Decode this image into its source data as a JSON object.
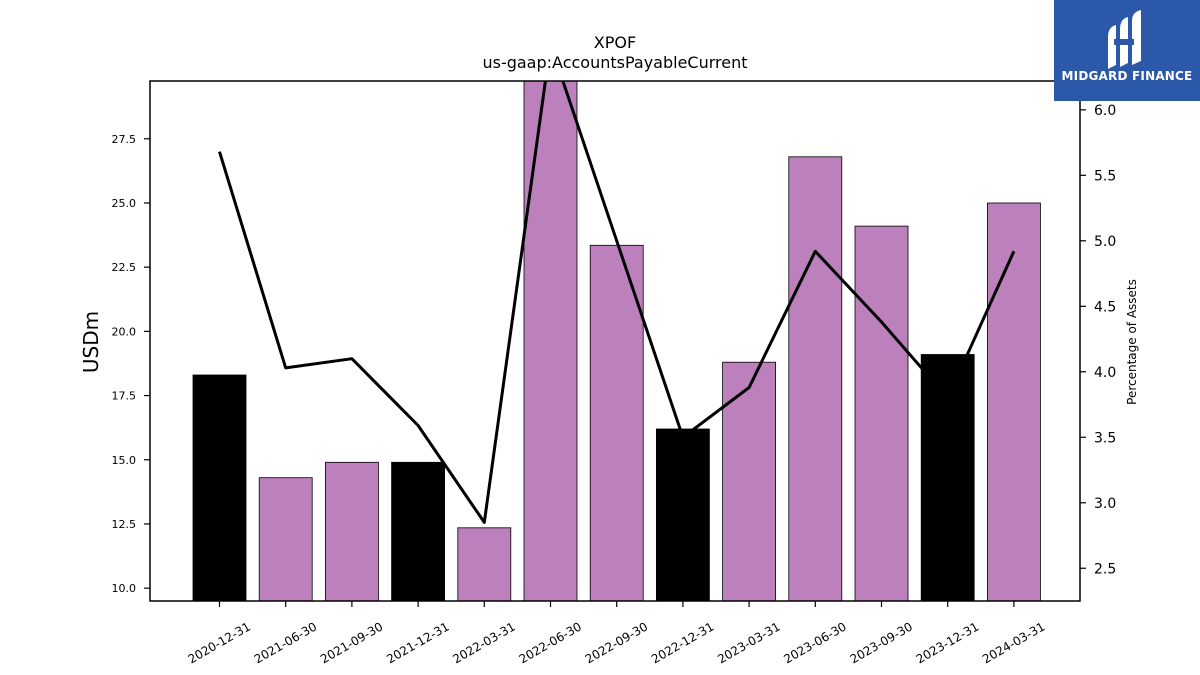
{
  "chart_data": {
    "type": "bar",
    "title": "XPOF",
    "subtitle": "us-gaap:AccountsPayableCurrent",
    "ylabel": "USDm",
    "y2label": "Percentage of Assets",
    "categories": [
      "2020-12-31",
      "2021-06-30",
      "2021-09-30",
      "2021-12-31",
      "2022-03-31",
      "2022-06-30",
      "2022-09-30",
      "2022-12-31",
      "2023-03-31",
      "2023-06-30",
      "2023-09-30",
      "2023-12-31",
      "2024-03-31"
    ],
    "series": [
      {
        "values": [
          18.3,
          14.3,
          14.9,
          14.9,
          12.35,
          29.8,
          23.35,
          16.2,
          18.8,
          26.8,
          24.1,
          19.1,
          25.0
        ],
        "colors": [
          "#000000",
          "#bc80bd",
          "#bc80bd",
          "#000000",
          "#bc80bd",
          "#bc80bd",
          "#bc80bd",
          "#000000",
          "#bc80bd",
          "#bc80bd",
          "#bc80bd",
          "#000000",
          "#bc80bd"
        ]
      },
      {
        "axis": "right",
        "type": "line",
        "color": "#000000",
        "values": [
          5.68,
          4.03,
          4.1,
          3.59,
          2.85,
          6.5,
          5.0,
          3.5,
          3.88,
          4.92,
          4.38,
          3.8,
          4.92
        ]
      }
    ],
    "ylim": [
      9.5,
      29.75
    ],
    "y2lim": [
      2.25,
      6.22
    ],
    "yticks": [
      "10.0",
      "12.5",
      "15.0",
      "17.5",
      "20.0",
      "22.5",
      "25.0",
      "27.5"
    ],
    "y2ticks": [
      "2.5",
      "3.0",
      "3.5",
      "4.0",
      "4.5",
      "5.0",
      "5.5",
      "6.0"
    ],
    "grid": false
  },
  "logo": {
    "text": "MIDGARD FINANCE",
    "color": "#2b58a8"
  }
}
